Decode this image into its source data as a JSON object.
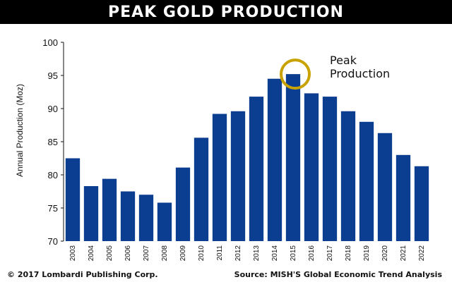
{
  "header": {
    "title": "PEAK GOLD PRODUCTION"
  },
  "footer": {
    "copyright": "© 2017 Lombardi Publishing Corp.",
    "source": "Source: MISH'S Global Economic Trend Analysis"
  },
  "colors": {
    "bar": "#0b3d91",
    "highlight_ring": "#c8a200",
    "title_bg": "#000000"
  },
  "chart_data": {
    "type": "bar",
    "title": "PEAK GOLD PRODUCTION",
    "xlabel": "",
    "ylabel": "Annual Production (Moz)",
    "ylim": [
      70,
      100
    ],
    "yticks": [
      70,
      75,
      80,
      85,
      90,
      95,
      100
    ],
    "categories": [
      "2003",
      "2004",
      "2005",
      "2006",
      "2007",
      "2008",
      "2009",
      "2010",
      "2011",
      "2012",
      "2013",
      "2014",
      "2015",
      "2016",
      "2017",
      "2018",
      "2019",
      "2020",
      "2021",
      "2022"
    ],
    "values": [
      82.5,
      78.3,
      79.4,
      77.5,
      77.0,
      75.8,
      81.1,
      85.6,
      89.2,
      89.6,
      91.8,
      94.5,
      95.2,
      92.3,
      91.8,
      89.6,
      88.0,
      86.3,
      83.0,
      81.3
    ],
    "grid": false,
    "legend": "none",
    "annotations": [
      {
        "text_lines": [
          "Peak",
          "Production"
        ],
        "category": "2015"
      }
    ]
  }
}
